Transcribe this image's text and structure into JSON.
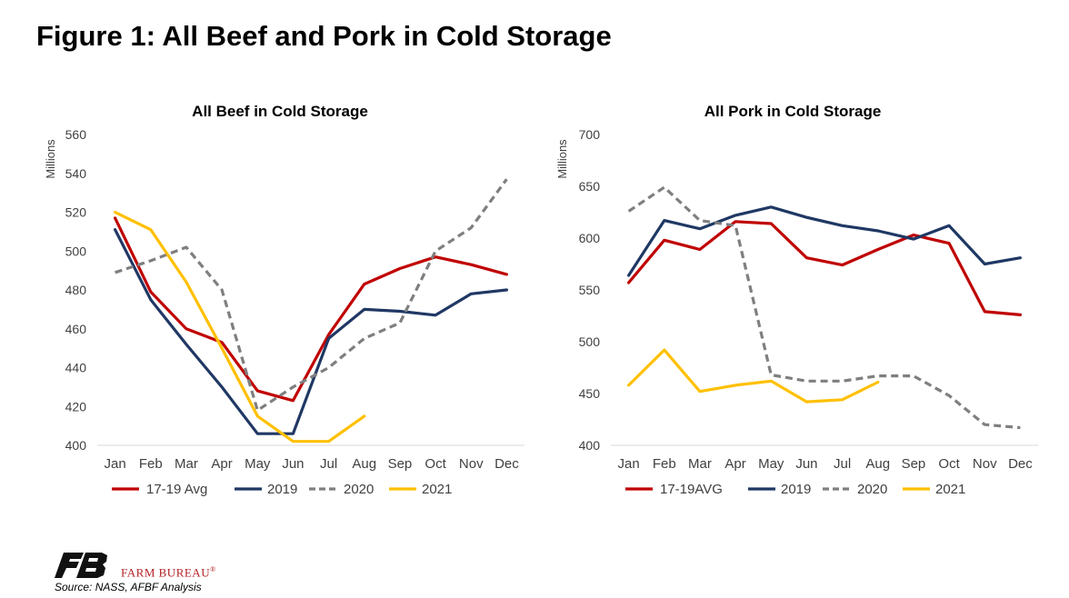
{
  "figure_title": "Figure 1: All Beef and Pork in Cold Storage",
  "footer": {
    "brand": "FARM BUREAU",
    "brand_mark": "®",
    "source": "Source: NASS, AFBF Analysis"
  },
  "colors": {
    "avg": "#c00000",
    "y2019": "#1f3864",
    "y2020": "#7f7f7f",
    "y2021": "#ffc000",
    "beef_2019": "#203864",
    "logo": "#111111",
    "brand": "#b41f24"
  },
  "chart_data": [
    {
      "type": "line",
      "title": "All Beef in Cold Storage",
      "ylabel": "Millions",
      "xlabel": "",
      "ylim": [
        400,
        560
      ],
      "yticks": [
        400,
        420,
        440,
        460,
        480,
        500,
        520,
        540,
        560
      ],
      "categories": [
        "Jan",
        "Feb",
        "Mar",
        "Apr",
        "May",
        "Jun",
        "Jul",
        "Aug",
        "Sep",
        "Oct",
        "Nov",
        "Dec"
      ],
      "grid": false,
      "legend": "bottom",
      "series": [
        {
          "name": "17-19 Avg",
          "color": "#c00000",
          "dash": false,
          "values": [
            517,
            479,
            460,
            453,
            428,
            423,
            457,
            483,
            491,
            497,
            493,
            488
          ]
        },
        {
          "name": "2019",
          "color": "#203864",
          "dash": false,
          "values": [
            511,
            475,
            452,
            430,
            406,
            406,
            455,
            470,
            469,
            467,
            478,
            480
          ]
        },
        {
          "name": "2020",
          "color": "#7f7f7f",
          "dash": true,
          "values": [
            489,
            495,
            502,
            480,
            418,
            430,
            440,
            455,
            463,
            500,
            512,
            537
          ]
        },
        {
          "name": "2021",
          "color": "#ffc000",
          "dash": false,
          "values": [
            520,
            511,
            484,
            450,
            415,
            402,
            402,
            415,
            null,
            null,
            null,
            null
          ]
        }
      ]
    },
    {
      "type": "line",
      "title": "All Pork in Cold Storage",
      "ylabel": "Millions",
      "xlabel": "",
      "ylim": [
        400,
        700
      ],
      "yticks": [
        400,
        450,
        500,
        550,
        600,
        650,
        700
      ],
      "categories": [
        "Jan",
        "Feb",
        "Mar",
        "Apr",
        "May",
        "Jun",
        "Jul",
        "Aug",
        "Sep",
        "Oct",
        "Nov",
        "Dec"
      ],
      "grid": false,
      "legend": "bottom",
      "series": [
        {
          "name": "17-19AVG",
          "color": "#c00000",
          "dash": false,
          "values": [
            557,
            598,
            589,
            616,
            614,
            581,
            574,
            589,
            603,
            595,
            529,
            526
          ]
        },
        {
          "name": "2019",
          "color": "#1f3864",
          "dash": false,
          "values": [
            564,
            617,
            609,
            622,
            630,
            620,
            612,
            607,
            599,
            612,
            575,
            581
          ]
        },
        {
          "name": "2020",
          "color": "#7f7f7f",
          "dash": true,
          "values": [
            626,
            649,
            617,
            612,
            468,
            462,
            462,
            467,
            467,
            448,
            420,
            417
          ]
        },
        {
          "name": "2021",
          "color": "#ffc000",
          "dash": false,
          "values": [
            458,
            492,
            452,
            458,
            462,
            442,
            444,
            461,
            null,
            null,
            null,
            null
          ]
        }
      ]
    }
  ]
}
